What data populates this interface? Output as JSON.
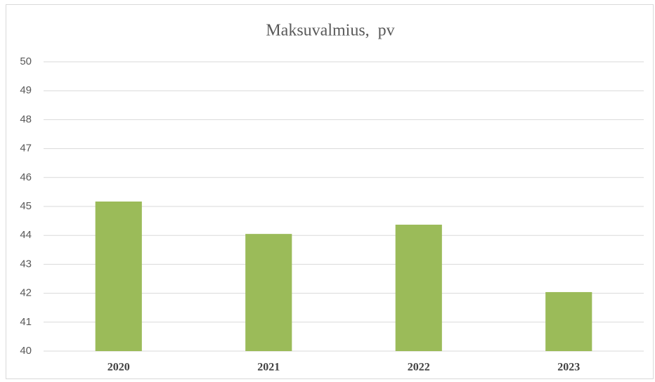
{
  "chart_data": {
    "type": "bar",
    "title": "Maksuvalmius,  pv",
    "categories": [
      "2020",
      "2021",
      "2022",
      "2023"
    ],
    "values": [
      45.17,
      44.05,
      44.37,
      42.04
    ],
    "color": "#9bbb59",
    "ylim": [
      40,
      50
    ],
    "yticks": [
      40,
      41,
      42,
      43,
      44,
      45,
      46,
      47,
      48,
      49,
      50
    ],
    "grid": true
  }
}
